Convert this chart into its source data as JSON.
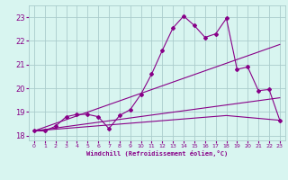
{
  "bg_color": "#d8f5f0",
  "grid_color": "#aacccc",
  "line_color": "#880088",
  "marker_color": "#880088",
  "xlabel": "Windchill (Refroidissement éolien,°C)",
  "ylim": [
    17.8,
    23.5
  ],
  "xlim": [
    -0.5,
    23.5
  ],
  "yticks": [
    18,
    19,
    20,
    21,
    22,
    23
  ],
  "xticks": [
    0,
    1,
    2,
    3,
    4,
    5,
    6,
    7,
    8,
    9,
    10,
    11,
    12,
    13,
    14,
    15,
    16,
    17,
    18,
    19,
    20,
    21,
    22,
    23
  ],
  "series1_x": [
    0,
    1,
    2,
    3,
    4,
    5,
    6,
    7,
    8,
    9,
    10,
    11,
    12,
    13,
    14,
    15,
    16,
    17,
    18,
    19,
    20,
    21,
    22,
    23
  ],
  "series1_y": [
    18.2,
    18.2,
    18.4,
    18.8,
    18.9,
    18.9,
    18.8,
    18.3,
    18.85,
    19.1,
    19.75,
    20.6,
    21.6,
    22.55,
    23.05,
    22.65,
    22.15,
    22.3,
    22.95,
    20.8,
    20.9,
    19.9,
    19.95,
    18.65
  ],
  "series2_x": [
    0,
    23
  ],
  "series2_y": [
    18.2,
    21.85
  ],
  "series3_x": [
    0,
    23
  ],
  "series3_y": [
    18.2,
    19.6
  ],
  "series4_x": [
    0,
    18,
    23
  ],
  "series4_y": [
    18.2,
    18.85,
    18.65
  ]
}
